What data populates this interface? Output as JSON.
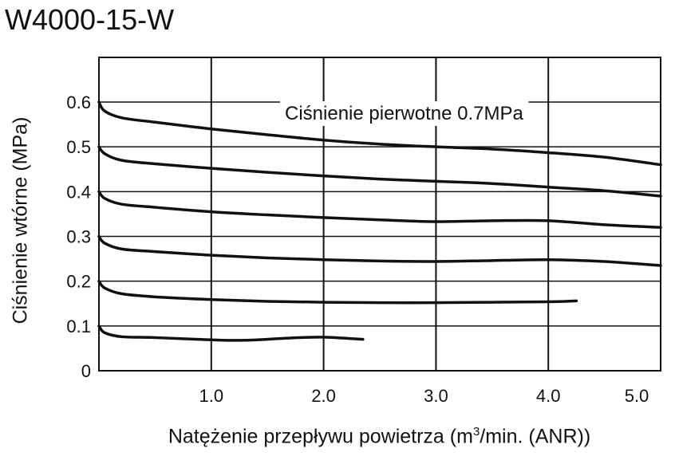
{
  "chart_data": {
    "type": "line",
    "title": "W4000-15-W",
    "xlabel_main": "Natężenie przepływu powietrza (m",
    "xlabel_sup": "3",
    "xlabel_tail": "/min. (ANR))",
    "ylabel": "Ciśnienie wtórne  (MPa)",
    "annotation": "Ciśnienie pierwotne 0.7MPa",
    "xlim": [
      0,
      5.0
    ],
    "ylim": [
      0,
      0.6
    ],
    "x_ticks": [
      1.0,
      2.0,
      3.0,
      4.0,
      5.0
    ],
    "x_tick_labels": [
      "1.0",
      "2.0",
      "3.0",
      "4.0",
      "5.0"
    ],
    "y_ticks": [
      0,
      0.1,
      0.2,
      0.3,
      0.4,
      0.5,
      0.6
    ],
    "y_tick_labels": [
      "0",
      "0.1",
      "0.2",
      "0.3",
      "0.4",
      "0.5",
      "0.6"
    ],
    "grid": true,
    "series": [
      {
        "x": [
          0.0,
          0.05,
          0.2,
          0.5,
          1.0,
          1.5,
          2.0,
          2.5,
          3.0,
          3.5,
          4.0,
          4.5,
          5.0
        ],
        "y": [
          0.6,
          0.58,
          0.565,
          0.555,
          0.54,
          0.527,
          0.515,
          0.506,
          0.5,
          0.495,
          0.487,
          0.477,
          0.46
        ]
      },
      {
        "x": [
          0.0,
          0.05,
          0.2,
          0.5,
          1.0,
          1.5,
          2.0,
          2.5,
          3.0,
          3.5,
          4.0,
          4.5,
          5.0
        ],
        "y": [
          0.5,
          0.485,
          0.47,
          0.462,
          0.452,
          0.443,
          0.435,
          0.428,
          0.423,
          0.418,
          0.41,
          0.402,
          0.39
        ]
      },
      {
        "x": [
          0.0,
          0.05,
          0.2,
          0.5,
          1.0,
          1.5,
          2.0,
          2.5,
          3.0,
          3.5,
          4.0,
          4.5,
          5.0
        ],
        "y": [
          0.4,
          0.385,
          0.372,
          0.365,
          0.355,
          0.348,
          0.342,
          0.337,
          0.333,
          0.335,
          0.335,
          0.326,
          0.32
        ]
      },
      {
        "x": [
          0.0,
          0.05,
          0.2,
          0.5,
          1.0,
          1.5,
          2.0,
          2.5,
          3.0,
          3.5,
          4.0,
          4.5,
          5.0
        ],
        "y": [
          0.3,
          0.285,
          0.272,
          0.266,
          0.258,
          0.252,
          0.248,
          0.245,
          0.244,
          0.246,
          0.248,
          0.244,
          0.235
        ]
      },
      {
        "x": [
          0.0,
          0.05,
          0.2,
          0.5,
          1.0,
          1.5,
          2.0,
          2.5,
          3.0,
          3.5,
          4.0,
          4.25
        ],
        "y": [
          0.2,
          0.185,
          0.172,
          0.165,
          0.159,
          0.155,
          0.153,
          0.152,
          0.152,
          0.153,
          0.154,
          0.156
        ]
      },
      {
        "x": [
          0.0,
          0.05,
          0.2,
          0.5,
          1.0,
          1.3,
          1.7,
          2.0,
          2.35
        ],
        "y": [
          0.1,
          0.085,
          0.076,
          0.074,
          0.069,
          0.068,
          0.073,
          0.075,
          0.07
        ]
      }
    ]
  }
}
